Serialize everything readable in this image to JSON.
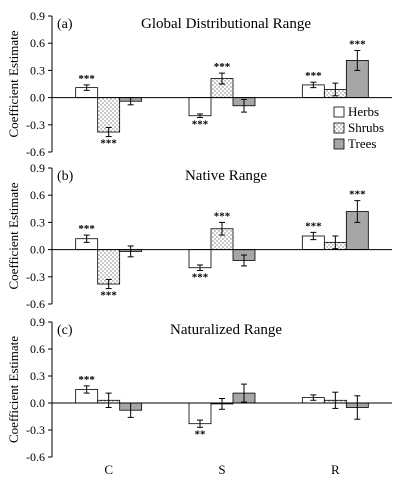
{
  "chart_data": {
    "type": "bar",
    "categories": [
      "C",
      "S",
      "R"
    ],
    "series": [
      {
        "name": "Herbs",
        "color": "#ffffff",
        "pattern": "solid"
      },
      {
        "name": "Shrubs",
        "color": "#ffffff",
        "pattern": "dots"
      },
      {
        "name": "Trees",
        "color": "#a6a6a6",
        "pattern": "solid"
      }
    ],
    "legend": {
      "placement": "right"
    },
    "grid": false,
    "panels": [
      {
        "label": "(a)",
        "title": "Global Distributional Range",
        "ylabel": "Coefficient Estimate",
        "ylim": [
          -0.6,
          0.9
        ],
        "ytick_labels": [
          "-0.6",
          "-0.3",
          "0.0",
          "0.3",
          "0.6",
          "0.9"
        ],
        "series": [
          {
            "values": [
              0.11,
              -0.2,
              0.14
            ],
            "errors": [
              0.03,
              0.02,
              0.03
            ],
            "significance": [
              "***",
              "***",
              "***"
            ]
          },
          {
            "values": [
              -0.38,
              0.21,
              0.09
            ],
            "errors": [
              0.05,
              0.06,
              0.07
            ],
            "significance": [
              "***",
              "***",
              ""
            ]
          },
          {
            "values": [
              -0.04,
              -0.09,
              0.41
            ],
            "errors": [
              0.04,
              0.07,
              0.11
            ],
            "significance": [
              "",
              "",
              "***"
            ]
          }
        ]
      },
      {
        "label": "(b)",
        "title": "Native Range",
        "ylabel": "Coefficient Estimate",
        "ylim": [
          -0.6,
          0.9
        ],
        "ytick_labels": [
          "-0.6",
          "-0.3",
          "0.0",
          "0.3",
          "0.6",
          "0.9"
        ],
        "series": [
          {
            "values": [
              0.12,
              -0.2,
              0.15
            ],
            "errors": [
              0.04,
              0.03,
              0.04
            ],
            "significance": [
              "***",
              "***",
              "***"
            ]
          },
          {
            "values": [
              -0.38,
              0.23,
              0.08
            ],
            "errors": [
              0.05,
              0.07,
              0.07
            ],
            "significance": [
              "***",
              "***",
              ""
            ]
          },
          {
            "values": [
              -0.02,
              -0.12,
              0.42
            ],
            "errors": [
              0.06,
              0.06,
              0.12
            ],
            "significance": [
              "",
              "",
              "***"
            ]
          }
        ]
      },
      {
        "label": "(c)",
        "title": "Naturalized Range",
        "ylabel": "Coefficient Estimate",
        "ylim": [
          -0.6,
          0.9
        ],
        "ytick_labels": [
          "-0.6",
          "-0.3",
          "0.0",
          "0.3",
          "0.6",
          "0.9"
        ],
        "series": [
          {
            "values": [
              0.15,
              -0.23,
              0.06
            ],
            "errors": [
              0.04,
              0.04,
              0.03
            ],
            "significance": [
              "***",
              "**",
              ""
            ]
          },
          {
            "values": [
              0.03,
              -0.01,
              0.03
            ],
            "errors": [
              0.08,
              0.06,
              0.09
            ],
            "significance": [
              "",
              "",
              ""
            ]
          },
          {
            "values": [
              -0.08,
              0.11,
              -0.05
            ],
            "errors": [
              0.08,
              0.1,
              0.13
            ],
            "significance": [
              "",
              "",
              ""
            ]
          }
        ]
      }
    ]
  }
}
